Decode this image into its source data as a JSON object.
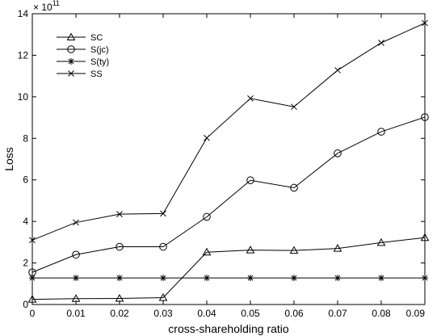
{
  "chart_data": {
    "type": "line",
    "xlabel": "cross-shareholding ratio",
    "ylabel": "Loss",
    "x": [
      0,
      0.01,
      0.02,
      0.03,
      0.04,
      0.05,
      0.06,
      0.07,
      0.08,
      0.09
    ],
    "x_tick_labels": [
      "0",
      "0.01",
      "0.02",
      "0.03",
      "0.04",
      "0.05",
      "0.06",
      "0.07",
      "0.08",
      "0.09"
    ],
    "y_tick_labels": [
      "0",
      "2",
      "4",
      "6",
      "8",
      "10",
      "12",
      "14"
    ],
    "y_ticks": [
      0,
      2,
      4,
      6,
      8,
      10,
      12,
      14
    ],
    "y_multiplier_base": "× 10",
    "y_multiplier_exp": "11",
    "xlim": [
      0,
      0.09
    ],
    "ylim": [
      0,
      14
    ],
    "grid": false,
    "legend_position": "top-left",
    "series": [
      {
        "name": "SC",
        "marker": "triangle",
        "values": [
          0.25,
          0.28,
          0.29,
          0.33,
          2.52,
          2.62,
          2.6,
          2.7,
          2.98,
          3.22
        ]
      },
      {
        "name": "S(jc)",
        "marker": "circle",
        "values": [
          1.55,
          2.4,
          2.78,
          2.78,
          4.22,
          5.98,
          5.62,
          7.28,
          8.32,
          9.02
        ]
      },
      {
        "name": "S(ty)",
        "marker": "asterisk",
        "values": [
          1.28,
          1.28,
          1.28,
          1.28,
          1.28,
          1.28,
          1.28,
          1.28,
          1.28,
          1.28
        ]
      },
      {
        "name": "SS",
        "marker": "x",
        "values": [
          3.1,
          3.95,
          4.35,
          4.38,
          8.02,
          9.92,
          9.52,
          11.28,
          12.6,
          13.55
        ]
      }
    ]
  }
}
